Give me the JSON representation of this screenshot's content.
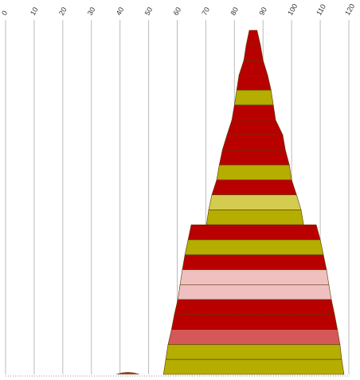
{
  "chart_data": {
    "type": "band-funnel",
    "xlim": [
      0,
      120
    ],
    "xticks": [
      0,
      10,
      20,
      30,
      40,
      50,
      60,
      70,
      80,
      90,
      100,
      110,
      120
    ],
    "grid": true,
    "bands": [
      {
        "color": "#b80000",
        "top": [
          85.2,
          87.9
        ],
        "bottom": [
          84.1,
          89.1
        ]
      },
      {
        "color": "#b80000",
        "top": [
          84.1,
          89.1
        ],
        "bottom": [
          83.3,
          90
        ]
      },
      {
        "color": "#b80000",
        "top": [
          83.3,
          90
        ],
        "bottom": [
          81.6,
          91.6
        ]
      },
      {
        "color": "#b80000",
        "top": [
          81.6,
          91.6
        ],
        "bottom": [
          80.8,
          92.8
        ]
      },
      {
        "color": "#b5ad00",
        "top": [
          80.8,
          92.8
        ],
        "bottom": [
          80,
          93.6
        ]
      },
      {
        "color": "#b80000",
        "top": [
          80,
          93.6
        ],
        "bottom": [
          79.1,
          94.4
        ]
      },
      {
        "color": "#b80000",
        "top": [
          79.1,
          94.4
        ],
        "bottom": [
          77.4,
          96.9
        ]
      },
      {
        "color": "#b80000",
        "top": [
          77.4,
          96.9
        ],
        "bottom": [
          75.8,
          97.8
        ]
      },
      {
        "color": "#b80000",
        "top": [
          75.8,
          97.8
        ],
        "bottom": [
          74.7,
          99.2
        ]
      },
      {
        "color": "#b5ad00",
        "top": [
          74.7,
          99.2
        ],
        "bottom": [
          73.8,
          100
        ]
      },
      {
        "color": "#b80000",
        "top": [
          73.8,
          100
        ],
        "bottom": [
          72.1,
          101.7
        ]
      },
      {
        "color": "#d4cc50",
        "top": [
          72.1,
          101.7
        ],
        "bottom": [
          71,
          103.3
        ]
      },
      {
        "color": "#b5ad00",
        "top": [
          71,
          103.3
        ],
        "bottom": [
          70.2,
          104.2
        ]
      },
      {
        "color": "#b80000",
        "top": [
          64.9,
          108.6
        ],
        "bottom": [
          63.8,
          110
        ]
      },
      {
        "color": "#b5ad00",
        "top": [
          63.8,
          110
        ],
        "bottom": [
          62.7,
          111.1
        ]
      },
      {
        "color": "#b80000",
        "top": [
          62.7,
          111.1
        ],
        "bottom": [
          61.8,
          112.2
        ]
      },
      {
        "color": "#f0c0c0",
        "top": [
          61.8,
          112.2
        ],
        "bottom": [
          61,
          113
        ]
      },
      {
        "color": "#f0c0c0",
        "top": [
          61,
          113
        ],
        "bottom": [
          60.2,
          113.9
        ]
      },
      {
        "color": "#b80000",
        "top": [
          60.2,
          113.9
        ],
        "bottom": [
          59,
          115
        ]
      },
      {
        "color": "#b80000",
        "top": [
          59,
          115
        ],
        "bottom": [
          58,
          116
        ]
      },
      {
        "color": "#d45858",
        "top": [
          58,
          116
        ],
        "bottom": [
          56.8,
          116.9
        ]
      },
      {
        "color": "#b5ad00",
        "top": [
          56.8,
          116.9
        ],
        "bottom": [
          56,
          117.5
        ]
      },
      {
        "color": "#b5ad00",
        "top": [
          56,
          117.5
        ],
        "bottom": [
          55.2,
          118.3
        ]
      }
    ],
    "marker": {
      "color": "#8b4a2a",
      "range": [
        38.5,
        47
      ]
    }
  }
}
